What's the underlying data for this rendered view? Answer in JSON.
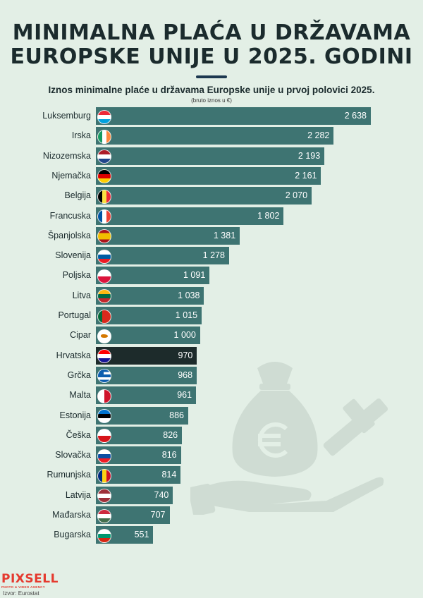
{
  "header": {
    "title_line1": "MINIMALNA PLAĆA U DRŽAVAMA",
    "title_line2": "EUROPSKE UNIJE U 2025. GODINI"
  },
  "chart_data": {
    "type": "bar",
    "orientation": "horizontal",
    "title": "Iznos minimalne plaće u državama Europske unije u prvoj polovici 2025.",
    "subtitle": "(bruto iznos u €)",
    "categories": [
      "Luksemburg",
      "Irska",
      "Nizozemska",
      "Njemačka",
      "Belgija",
      "Francuska",
      "Španjolska",
      "Slovenija",
      "Poljska",
      "Litva",
      "Portugal",
      "Cipar",
      "Hrvatska",
      "Grčka",
      "Malta",
      "Estonija",
      "Češka",
      "Slovačka",
      "Rumunjska",
      "Latvija",
      "Mađarska",
      "Bugarska"
    ],
    "values": [
      2638,
      2282,
      2193,
      2161,
      2070,
      1802,
      1381,
      1278,
      1091,
      1038,
      1015,
      1000,
      970,
      968,
      961,
      886,
      826,
      816,
      814,
      740,
      707,
      551
    ],
    "value_labels": [
      "2 638",
      "2 282",
      "2 193",
      "2 161",
      "2 070",
      "1 802",
      "1 381",
      "1 278",
      "1 091",
      "1 038",
      "1 015",
      "1 000",
      "970",
      "968",
      "961",
      "886",
      "826",
      "816",
      "814",
      "740",
      "707",
      "551"
    ],
    "highlight": "Hrvatska",
    "xlim": [
      0,
      2638
    ],
    "bar_color": "#3e7472",
    "highlight_color": "#1d2b2b"
  },
  "footer": {
    "logo": "PIXSELL",
    "logo_tagline": "PHOTO & VIDEO AGENCY",
    "source": "Izvor: Eurostat"
  },
  "flags": {
    "Luksemburg": [
      "#ed2939",
      "#ffffff",
      "#00a1de"
    ],
    "Irska": [
      "v",
      "#169b62",
      "#ffffff",
      "#ff883e"
    ],
    "Nizozemska": [
      "#ae1c28",
      "#ffffff",
      "#21468b"
    ],
    "Njemačka": [
      "#000000",
      "#dd0000",
      "#ffce00"
    ],
    "Belgija": [
      "v",
      "#000000",
      "#fae042",
      "#ed2939"
    ],
    "Francuska": [
      "v",
      "#0055a4",
      "#ffffff",
      "#ef4135"
    ],
    "Španjolska": [
      "#aa151b",
      "#f1bf00",
      "#f1bf00",
      "#aa151b"
    ],
    "Slovenija": [
      "#ffffff",
      "#005da4",
      "#ed1c24"
    ],
    "Poljska": [
      "#ffffff",
      "#dc143c"
    ],
    "Litva": [
      "#fdb913",
      "#006a44",
      "#c1272d"
    ],
    "Portugal": [
      "v",
      "#046a38",
      "#da291c",
      "#da291c"
    ],
    "Cipar": [
      "#ffffff",
      "#ffffff"
    ],
    "Hrvatska": [
      "#ff0000",
      "#ffffff",
      "#171796"
    ],
    "Grčka": [
      "#0d5eaf",
      "#ffffff",
      "#0d5eaf",
      "#ffffff",
      "#0d5eaf"
    ],
    "Malta": [
      "v",
      "#ffffff",
      "#cf142b"
    ],
    "Estonija": [
      "#0072ce",
      "#000000",
      "#ffffff"
    ],
    "Češka": [
      "#ffffff",
      "#d7141a"
    ],
    "Slovačka": [
      "#ffffff",
      "#0b4ea2",
      "#ee1c25"
    ],
    "Rumunjska": [
      "v",
      "#002b7f",
      "#fcd116",
      "#ce1126"
    ],
    "Latvija": [
      "#9e3039",
      "#ffffff",
      "#9e3039"
    ],
    "Mađarska": [
      "#cd2a3e",
      "#ffffff",
      "#436f4d"
    ],
    "Bugarska": [
      "#ffffff",
      "#00966e",
      "#d62612"
    ]
  }
}
